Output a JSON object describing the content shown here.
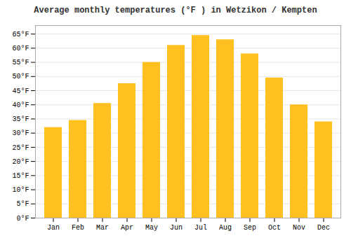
{
  "chart_data": {
    "type": "bar",
    "title": "Average monthly temperatures (°F ) in Wetzikon / Kempten",
    "categories": [
      "Jan",
      "Feb",
      "Mar",
      "Apr",
      "May",
      "Jun",
      "Jul",
      "Aug",
      "Sep",
      "Oct",
      "Nov",
      "Dec"
    ],
    "values": [
      32,
      34.5,
      40.5,
      47.5,
      55,
      61,
      64.5,
      63,
      58,
      49.5,
      40,
      34
    ],
    "color": "#FFC020",
    "ylim": [
      0,
      68
    ],
    "yticks": [
      {
        "value": 0,
        "label": "0°F"
      },
      {
        "value": 5,
        "label": "5°F"
      },
      {
        "value": 10,
        "label": "10°F"
      },
      {
        "value": 15,
        "label": "15°F"
      },
      {
        "value": 20,
        "label": "20°F"
      },
      {
        "value": 25,
        "label": "25°F"
      },
      {
        "value": 30,
        "label": "30°F"
      },
      {
        "value": 35,
        "label": "35°F"
      },
      {
        "value": 40,
        "label": "40°F"
      },
      {
        "value": 45,
        "label": "45°F"
      },
      {
        "value": 50,
        "label": "50°F"
      },
      {
        "value": 55,
        "label": "55°F"
      },
      {
        "value": 60,
        "label": "60°F"
      },
      {
        "value": 65,
        "label": "65°F"
      }
    ],
    "grid": true
  }
}
